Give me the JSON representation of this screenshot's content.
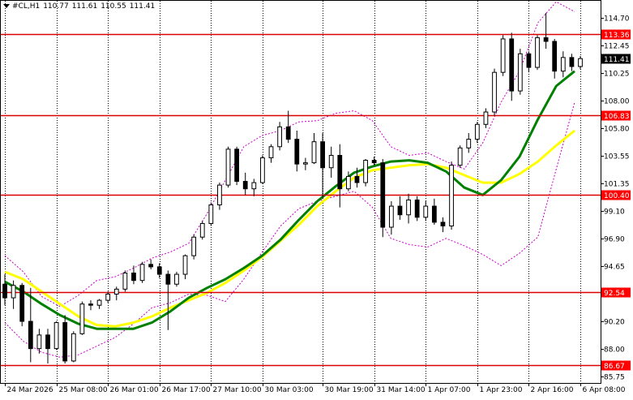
{
  "header": {
    "menu_icon": "triangle-down-icon",
    "symbol": "#CL,H1",
    "open": "110.77",
    "high": "111.61",
    "low": "110.55",
    "close": "111.41"
  },
  "chart_data": {
    "type": "candlestick",
    "y_axis_ticks": [
      "114.70",
      "112.45",
      "110.25",
      "108.00",
      "105.80",
      "103.55",
      "101.35",
      "99.10",
      "96.90",
      "94.65",
      "92.45",
      "90.20",
      "88.00",
      "85.75"
    ],
    "ylim": [
      85.75,
      116.3
    ],
    "x_axis_labels": [
      "24 Mar 2026",
      "25 Mar 08:00",
      "26 Mar 01:00",
      "26 Mar 17:00",
      "27 Mar 10:00",
      "30 Mar 03:00",
      "30 Mar 19:00",
      "31 Mar 14:00",
      "1 Apr 07:00",
      "1 Apr 23:00",
      "2 Apr 16:00",
      "6 Apr 08:00"
    ],
    "levels": [
      {
        "label": "113.36",
        "value": 113.36
      },
      {
        "label": "106.83",
        "value": 106.83
      },
      {
        "label": "100.40",
        "value": 100.4
      },
      {
        "label": "92.54",
        "value": 92.54
      },
      {
        "label": "86.67",
        "value": 86.67
      }
    ],
    "current_price": {
      "label": "111.41",
      "value": 111.41
    },
    "colors": {
      "level_line": "#dd0000",
      "level_label_bg": "#ff0000",
      "level_label_text": "#ffffff",
      "price_label_bg": "#000000",
      "price_label_text": "#ffffff",
      "candle": "#000000",
      "green_ma": "#008000",
      "yellow_ma": "#ffff00",
      "bollinger": "#cc00cc",
      "grid": "#000000"
    },
    "green_ma": [
      93.4,
      92.6,
      91.6,
      90.7,
      90.0,
      89.6,
      89.6,
      89.6,
      90.1,
      91.0,
      92.1,
      92.9,
      93.6,
      94.5,
      95.5,
      96.8,
      98.4,
      99.9,
      101.1,
      102.2,
      102.7,
      103.1,
      103.2,
      103.0,
      102.3,
      101.0,
      100.4,
      101.6,
      103.5,
      106.5,
      109.2,
      110.4
    ],
    "yellow_ma": [
      94.2,
      93.6,
      92.6,
      91.6,
      90.6,
      89.9,
      89.8,
      90.1,
      90.6,
      91.3,
      91.9,
      92.5,
      93.3,
      94.3,
      95.4,
      96.7,
      98.0,
      99.5,
      100.7,
      101.8,
      102.4,
      102.6,
      102.8,
      102.9,
      102.6,
      102.0,
      101.4,
      101.4,
      102.1,
      103.1,
      104.4,
      105.6
    ],
    "bb_upper": [
      95.5,
      94.2,
      92.2,
      91.4,
      92.3,
      93.5,
      93.8,
      94.5,
      95.3,
      95.8,
      96.5,
      98.9,
      101.6,
      104.3,
      105.2,
      105.6,
      106.3,
      106.4,
      107.0,
      107.2,
      106.4,
      104.3,
      103.6,
      103.8,
      103.1,
      102.5,
      104.6,
      107.9,
      110.4,
      114.3,
      116.0,
      115.2
    ],
    "bb_lower": [
      90.1,
      88.6,
      87.7,
      87.3,
      87.5,
      88.2,
      88.9,
      90.0,
      91.3,
      91.7,
      92.4,
      92.3,
      91.8,
      93.6,
      95.8,
      97.9,
      99.3,
      99.9,
      100.3,
      100.7,
      99.4,
      96.9,
      96.4,
      96.2,
      96.9,
      96.3,
      95.6,
      94.7,
      95.7,
      97.0,
      102.5,
      107.9
    ],
    "candles": [
      [
        93.2,
        94.0,
        91.5,
        92.1
      ],
      [
        92.1,
        93.5,
        91.2,
        93.1
      ],
      [
        93.1,
        93.3,
        89.8,
        90.2
      ],
      [
        90.2,
        92.9,
        86.9,
        88.0
      ],
      [
        88.0,
        89.6,
        87.6,
        89.1
      ],
      [
        89.1,
        89.6,
        86.8,
        88.0
      ],
      [
        88.0,
        90.2,
        87.9,
        90.1
      ],
      [
        90.1,
        90.7,
        86.8,
        87.0
      ],
      [
        87.0,
        89.4,
        86.9,
        89.2
      ],
      [
        89.2,
        91.8,
        89.1,
        91.6
      ],
      [
        91.6,
        91.9,
        91.1,
        91.5
      ],
      [
        91.5,
        92.0,
        91.2,
        91.9
      ],
      [
        91.9,
        92.6,
        91.7,
        92.4
      ],
      [
        92.4,
        93.0,
        91.9,
        92.8
      ],
      [
        92.8,
        94.3,
        92.6,
        94.1
      ],
      [
        94.1,
        94.7,
        93.2,
        93.5
      ],
      [
        93.5,
        95.0,
        93.3,
        94.8
      ],
      [
        94.8,
        95.2,
        94.4,
        94.6
      ],
      [
        94.6,
        94.9,
        93.7,
        94.0
      ],
      [
        94.0,
        94.3,
        89.5,
        93.2
      ],
      [
        93.2,
        94.2,
        93.0,
        94.0
      ],
      [
        94.0,
        95.6,
        93.6,
        95.5
      ],
      [
        95.5,
        97.2,
        95.2,
        97.0
      ],
      [
        97.0,
        98.3,
        96.8,
        98.1
      ],
      [
        98.1,
        99.8,
        97.9,
        99.6
      ],
      [
        99.6,
        101.4,
        99.2,
        101.2
      ],
      [
        101.2,
        104.3,
        101.0,
        104.1
      ],
      [
        104.1,
        104.3,
        101.2,
        101.5
      ],
      [
        101.5,
        102.2,
        100.4,
        100.9
      ],
      [
        100.9,
        101.7,
        100.3,
        101.4
      ],
      [
        101.4,
        103.6,
        101.3,
        103.4
      ],
      [
        103.4,
        104.5,
        103.0,
        104.3
      ],
      [
        104.3,
        106.3,
        104.0,
        105.9
      ],
      [
        105.9,
        107.2,
        104.6,
        104.9
      ],
      [
        104.9,
        105.6,
        102.3,
        102.9
      ],
      [
        102.9,
        103.4,
        102.4,
        103.0
      ],
      [
        103.0,
        105.4,
        102.9,
        104.7
      ],
      [
        104.7,
        105.4,
        100.2,
        102.6
      ],
      [
        102.6,
        104.3,
        101.8,
        103.6
      ],
      [
        103.6,
        104.5,
        99.4,
        100.9
      ],
      [
        100.9,
        102.3,
        100.7,
        101.9
      ],
      [
        101.9,
        102.6,
        101.0,
        101.4
      ],
      [
        101.4,
        103.3,
        101.1,
        103.2
      ],
      [
        103.2,
        103.5,
        102.8,
        103.0
      ],
      [
        103.0,
        103.3,
        97.0,
        97.8
      ],
      [
        97.8,
        99.9,
        97.2,
        99.5
      ],
      [
        99.5,
        100.3,
        98.4,
        98.8
      ],
      [
        98.8,
        100.5,
        98.1,
        100.0
      ],
      [
        100.0,
        100.3,
        98.3,
        98.6
      ],
      [
        98.6,
        99.9,
        98.3,
        99.5
      ],
      [
        99.5,
        100.1,
        98.0,
        98.2
      ],
      [
        98.2,
        98.6,
        97.4,
        97.9
      ],
      [
        97.9,
        103.1,
        97.6,
        102.8
      ],
      [
        102.8,
        104.4,
        102.6,
        104.2
      ],
      [
        104.2,
        105.4,
        103.8,
        104.9
      ],
      [
        104.9,
        106.3,
        104.6,
        106.1
      ],
      [
        106.1,
        107.4,
        105.8,
        107.1
      ],
      [
        107.1,
        110.6,
        106.8,
        110.3
      ],
      [
        110.3,
        113.3,
        110.0,
        113.0
      ],
      [
        113.0,
        113.5,
        108.0,
        108.8
      ],
      [
        108.8,
        112.2,
        108.5,
        111.8
      ],
      [
        111.8,
        112.0,
        110.3,
        110.7
      ],
      [
        110.7,
        113.3,
        110.5,
        113.1
      ],
      [
        113.1,
        115.1,
        112.2,
        112.8
      ],
      [
        112.8,
        113.0,
        109.8,
        110.4
      ],
      [
        110.4,
        112.0,
        109.9,
        111.5
      ],
      [
        111.5,
        111.8,
        110.4,
        110.77
      ],
      [
        110.77,
        111.61,
        110.55,
        111.41
      ]
    ]
  }
}
